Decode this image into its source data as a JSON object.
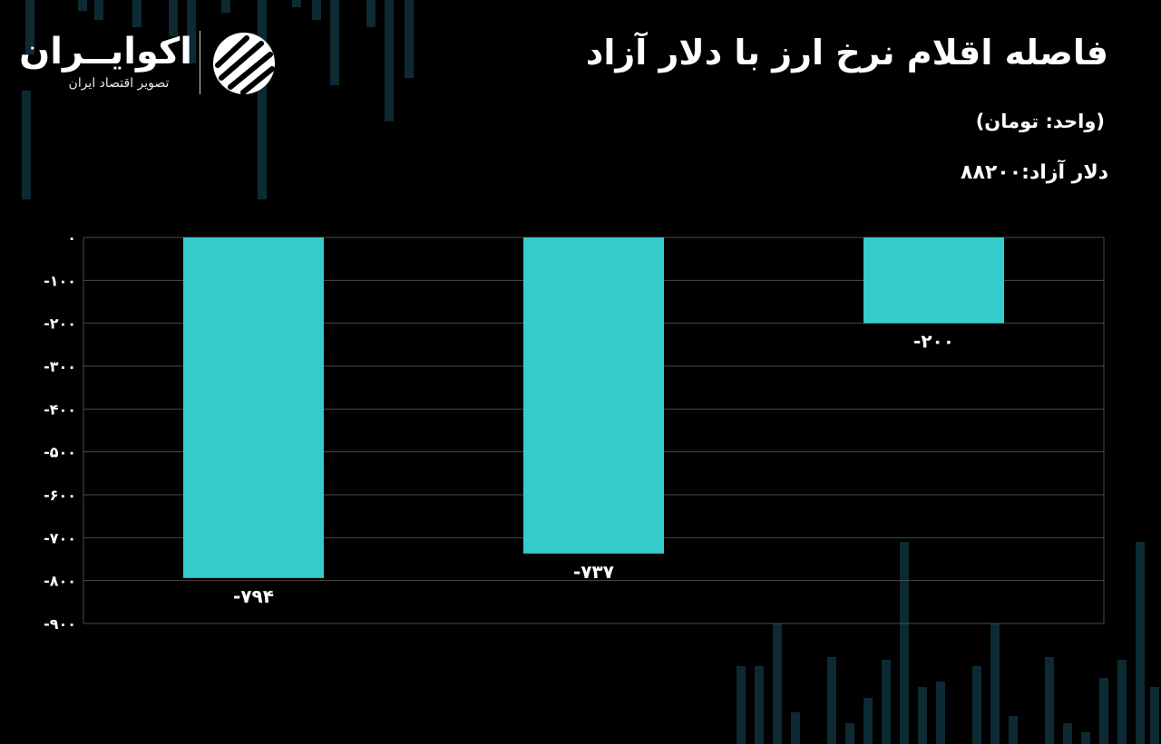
{
  "title": "فاصله اقلام نرخ ارز با دلار آزاد",
  "unit_label": "(واحد: تومان)",
  "reference_label": "دلار آزاد:۸۸۲۰۰",
  "logo": {
    "name": "اکوایــران",
    "tagline": "تصویر اقتصاد ایران",
    "icon": "ecoiran-stripes-icon"
  },
  "colors": {
    "background": "#000000",
    "bar": "#35cbcc",
    "grid": "#4a4a4a",
    "text": "#ffffff"
  },
  "chart_data": {
    "type": "bar",
    "categories": [
      "",
      "",
      ""
    ],
    "values": [
      -794,
      -737,
      -200
    ],
    "value_labels": [
      "-۷۹۴",
      "-۷۳۷",
      "-۲۰۰"
    ],
    "ylim": [
      -900,
      0
    ],
    "yticks": [
      0,
      -100,
      -200,
      -300,
      -400,
      -500,
      -600,
      -700,
      -800,
      -900
    ],
    "ytick_labels": [
      "۰",
      "-۱۰۰",
      "-۲۰۰",
      "-۳۰۰",
      "-۴۰۰",
      "-۵۰۰",
      "-۶۰۰",
      "-۷۰۰",
      "-۸۰۰",
      "-۹۰۰"
    ],
    "grid": true,
    "legend": "none",
    "title": "",
    "xlabel": "",
    "ylabel": ""
  }
}
